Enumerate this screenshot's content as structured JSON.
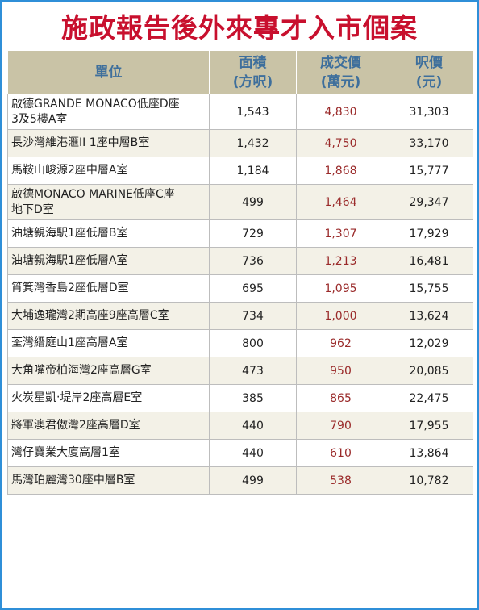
{
  "title": "施政報告後外來專才入市個案",
  "headers": {
    "unit": "單位",
    "area_line1": "面積",
    "area_line2": "(方呎)",
    "price_line1": "成交價",
    "price_line2": "(萬元)",
    "psf_line1": "呎價",
    "psf_line2": "(元)"
  },
  "rows": [
    {
      "unit_line1": "啟德GRANDE MONACO低座D座",
      "unit_line2": "3及5樓A室",
      "area": "1,543",
      "price": "4,830",
      "psf": "31,303"
    },
    {
      "unit_line1": "長沙灣維港滙II 1座中層B室",
      "unit_line2": "",
      "area": "1,432",
      "price": "4,750",
      "psf": "33,170"
    },
    {
      "unit_line1": "馬鞍山峻源2座中層A室",
      "unit_line2": "",
      "area": "1,184",
      "price": "1,868",
      "psf": "15,777"
    },
    {
      "unit_line1": "啟德MONACO MARINE低座C座",
      "unit_line2": "地下D室",
      "area": "499",
      "price": "1,464",
      "psf": "29,347"
    },
    {
      "unit_line1": "油塘親海駅1座低層B室",
      "unit_line2": "",
      "area": "729",
      "price": "1,307",
      "psf": "17,929"
    },
    {
      "unit_line1": "油塘親海駅1座低層A室",
      "unit_line2": "",
      "area": "736",
      "price": "1,213",
      "psf": "16,481"
    },
    {
      "unit_line1": "筲箕灣香島2座低層D室",
      "unit_line2": "",
      "area": "695",
      "price": "1,095",
      "psf": "15,755"
    },
    {
      "unit_line1": "大埔逸瓏灣2期高座9座高層C室",
      "unit_line2": "",
      "area": "734",
      "price": "1,000",
      "psf": "13,624"
    },
    {
      "unit_line1": "荃灣縉庭山1座高層A室",
      "unit_line2": "",
      "area": "800",
      "price": "962",
      "psf": "12,029"
    },
    {
      "unit_line1": "大角嘴帝柏海灣2座高層G室",
      "unit_line2": "",
      "area": "473",
      "price": "950",
      "psf": "20,085"
    },
    {
      "unit_line1": "火炭星凱‧堤岸2座高層E室",
      "unit_line2": "",
      "area": "385",
      "price": "865",
      "psf": "22,475"
    },
    {
      "unit_line1": "將軍澳君傲灣2座高層D室",
      "unit_line2": "",
      "area": "440",
      "price": "790",
      "psf": "17,955"
    },
    {
      "unit_line1": "灣仔寶業大廈高層1室",
      "unit_line2": "",
      "area": "440",
      "price": "610",
      "psf": "13,864"
    },
    {
      "unit_line1": "馬灣珀麗灣30座中層B室",
      "unit_line2": "",
      "area": "499",
      "price": "538",
      "psf": "10,782"
    }
  ]
}
